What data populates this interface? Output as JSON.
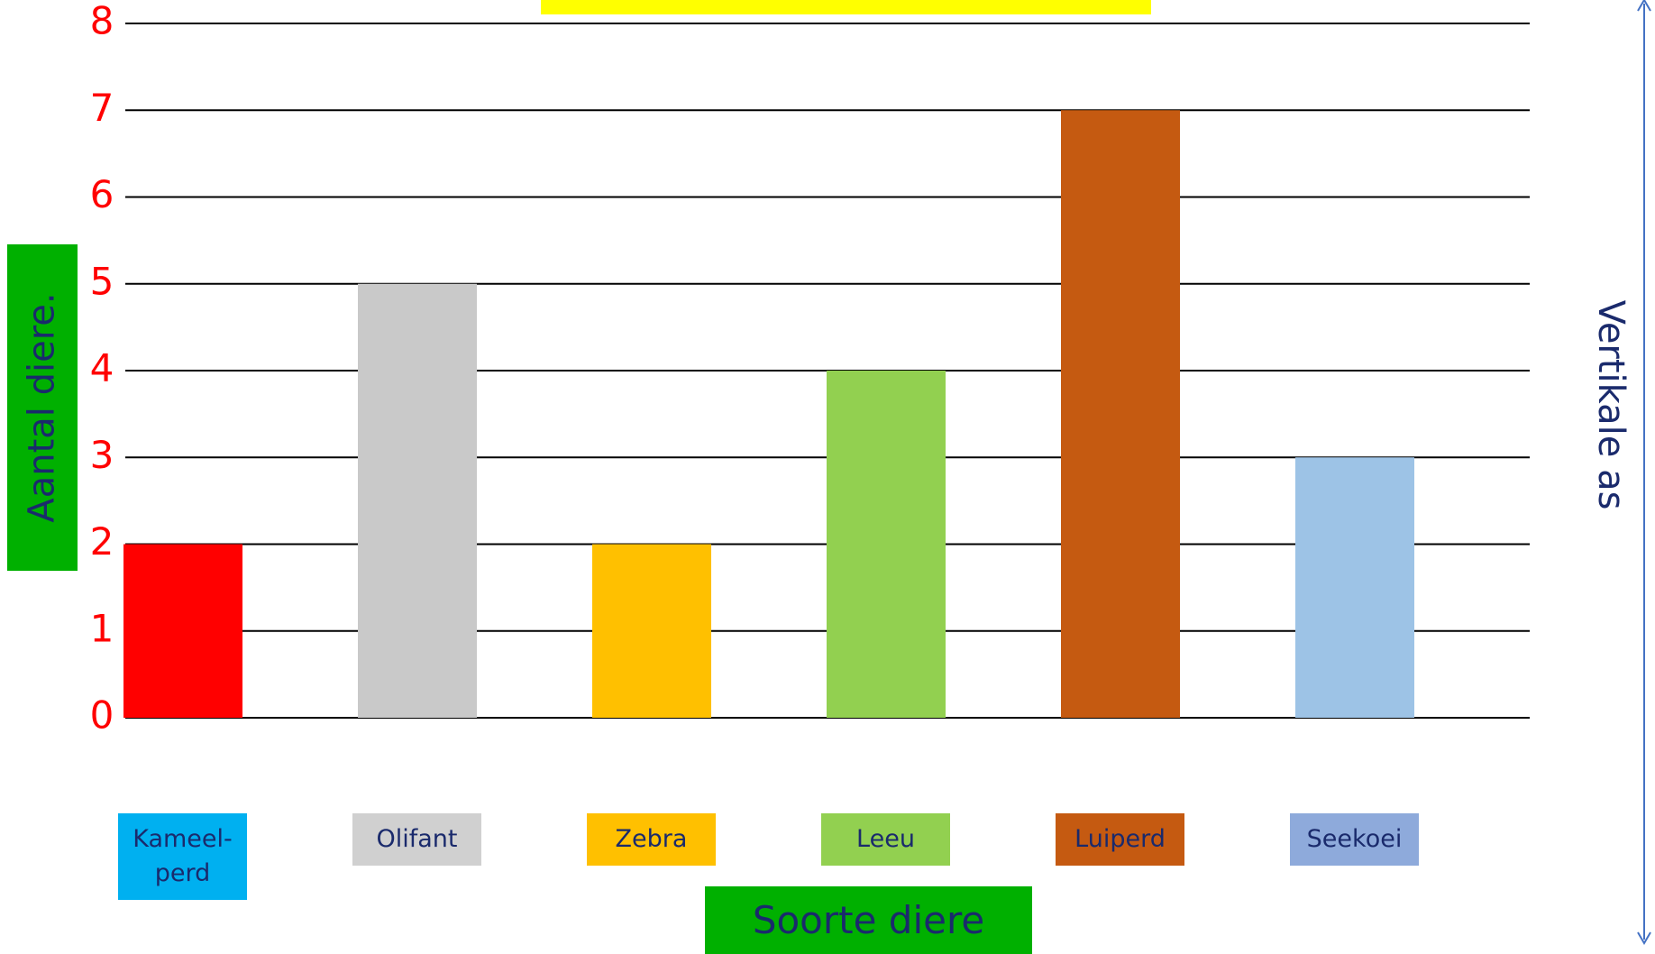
{
  "chart_data": {
    "type": "bar",
    "y_label": "Aantal diere.",
    "x_label": "Soorte diere",
    "axis_note": "Vertikale as",
    "categories": [
      "Kameel-\nperd",
      "Olifant",
      "Zebra",
      "Leeu",
      "Luiperd",
      "Seekoei"
    ],
    "values": [
      2,
      5,
      2,
      4,
      7,
      3
    ],
    "colors": [
      "#ff0000",
      "#c9c9c9",
      "#ffc000",
      "#92d050",
      "#c55a11",
      "#9dc3e6"
    ],
    "label_colors": [
      "#00b0f0",
      "#d0d0d0",
      "#ffc000",
      "#92d050",
      "#c55a11",
      "#8eaadb"
    ],
    "ylim": [
      0,
      8
    ],
    "yticks": [
      0,
      1,
      2,
      3,
      4,
      5,
      6,
      7,
      8
    ],
    "grid": true
  }
}
